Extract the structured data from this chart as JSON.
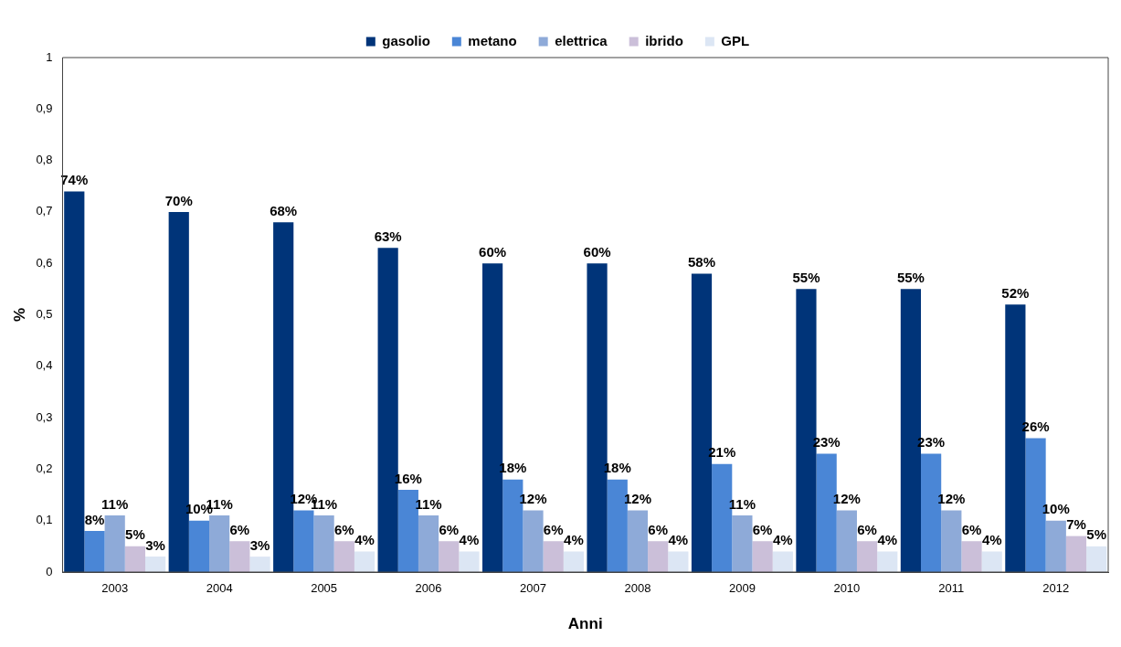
{
  "chart_data": {
    "type": "bar",
    "xlabel": "Anni",
    "ylabel": "%",
    "categories": [
      "2003",
      "2004",
      "2005",
      "2006",
      "2007",
      "2008",
      "2009",
      "2010",
      "2011",
      "2012"
    ],
    "series": [
      {
        "name": "gasolio",
        "color": "#003479",
        "values": [
          0.74,
          0.7,
          0.68,
          0.63,
          0.6,
          0.6,
          0.58,
          0.55,
          0.55,
          0.52
        ],
        "value_labels": [
          "74%",
          "70%",
          "68%",
          "63%",
          "60%",
          "60%",
          "58%",
          "55%",
          "55%",
          "52%"
        ]
      },
      {
        "name": "metano",
        "color": "#4a86d6",
        "values": [
          0.08,
          0.1,
          0.12,
          0.16,
          0.18,
          0.18,
          0.21,
          0.23,
          0.23,
          0.26
        ],
        "value_labels": [
          "8%",
          "10%",
          "12%",
          "16%",
          "18%",
          "18%",
          "21%",
          "23%",
          "23%",
          "26%"
        ]
      },
      {
        "name": "elettrica",
        "color": "#8eaad8",
        "values": [
          0.11,
          0.11,
          0.11,
          0.11,
          0.12,
          0.12,
          0.11,
          0.12,
          0.12,
          0.1
        ],
        "value_labels": [
          "11%",
          "11%",
          "11%",
          "11%",
          "12%",
          "12%",
          "11%",
          "12%",
          "12%",
          "10%"
        ]
      },
      {
        "name": "ibrido",
        "color": "#cbbfd9",
        "values": [
          0.05,
          0.06,
          0.06,
          0.06,
          0.06,
          0.06,
          0.06,
          0.06,
          0.06,
          0.07
        ],
        "value_labels": [
          "5%",
          "6%",
          "6%",
          "6%",
          "6%",
          "6%",
          "6%",
          "6%",
          "6%",
          "7%"
        ]
      },
      {
        "name": "GPL",
        "color": "#dce6f4",
        "values": [
          0.03,
          0.03,
          0.04,
          0.04,
          0.04,
          0.04,
          0.04,
          0.04,
          0.04,
          0.05
        ],
        "value_labels": [
          "3%",
          "3%",
          "4%",
          "4%",
          "4%",
          "4%",
          "4%",
          "4%",
          "4%",
          "5%"
        ]
      }
    ],
    "ylim": [
      0,
      1
    ],
    "yticks": [
      0,
      {
        "value": 0.1,
        "label": "0,1"
      },
      {
        "value": 0.2,
        "label": "0,2"
      },
      {
        "value": 0.3,
        "label": "0,3"
      },
      {
        "value": 0.4,
        "label": "0,4"
      },
      {
        "value": 0.5,
        "label": "0,5"
      },
      {
        "value": 0.6,
        "label": "0,6"
      },
      {
        "value": 0.7,
        "label": "0,7"
      },
      {
        "value": 0.8,
        "label": "0,8"
      },
      {
        "value": 0.9,
        "label": "0,9"
      },
      1
    ],
    "grid": false,
    "legend": "top"
  }
}
